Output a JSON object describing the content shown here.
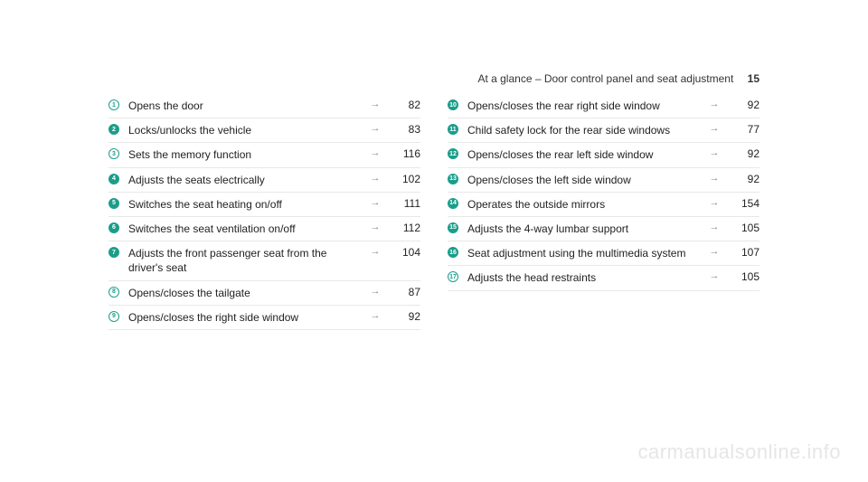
{
  "header": {
    "title": "At a glance – Door control panel and seat adjustment",
    "page": "15"
  },
  "arrow": "→",
  "badge_colors": {
    "teal": "#1a9e8a",
    "white": "#ffffff"
  },
  "left_column": [
    {
      "n": "1",
      "style": "outline",
      "text": "Opens the door",
      "page": "82"
    },
    {
      "n": "2",
      "style": "solid",
      "text": "Locks/unlocks the vehicle",
      "page": "83"
    },
    {
      "n": "3",
      "style": "outline",
      "text": "Sets the memory function",
      "page": "116"
    },
    {
      "n": "4",
      "style": "solid",
      "text": "Adjusts the seats electrically",
      "page": "102"
    },
    {
      "n": "5",
      "style": "solid",
      "text": "Switches the seat heating on/off",
      "page": "111"
    },
    {
      "n": "6",
      "style": "solid",
      "text": "Switches the seat ventilation on/off",
      "page": "112"
    },
    {
      "n": "7",
      "style": "solid",
      "text": "Adjusts the front passenger seat from the driver's seat",
      "page": "104"
    },
    {
      "n": "8",
      "style": "outline",
      "text": "Opens/closes the tailgate",
      "page": "87"
    },
    {
      "n": "9",
      "style": "outline",
      "text": "Opens/closes the right side window",
      "page": "92"
    }
  ],
  "right_column": [
    {
      "n": "10",
      "style": "solid",
      "text": "Opens/closes the rear right side window",
      "page": "92"
    },
    {
      "n": "11",
      "style": "solid",
      "text": "Child safety lock for the rear side windows",
      "page": "77"
    },
    {
      "n": "12",
      "style": "solid",
      "text": "Opens/closes the rear left side window",
      "page": "92"
    },
    {
      "n": "13",
      "style": "solid",
      "text": "Opens/closes the left side window",
      "page": "92"
    },
    {
      "n": "14",
      "style": "solid",
      "text": "Operates the outside mirrors",
      "page": "154"
    },
    {
      "n": "15",
      "style": "solid",
      "text": "Adjusts the 4-way lumbar support",
      "page": "105"
    },
    {
      "n": "16",
      "style": "solid",
      "text": "Seat adjustment using the multimedia system",
      "page": "107"
    },
    {
      "n": "17",
      "style": "outline",
      "text": "Adjusts the head restraints",
      "page": "105"
    }
  ],
  "watermark": "carmanualsonline.info"
}
